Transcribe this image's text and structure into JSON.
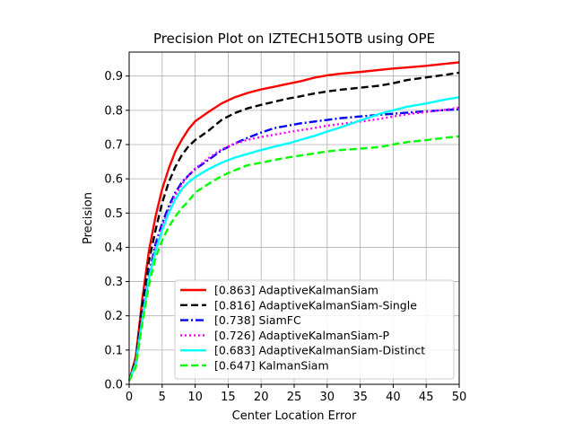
{
  "chart_data": {
    "type": "line",
    "title": "Precision Plot on IZTECH15OTB using OPE",
    "xlabel": "Center Location Error",
    "ylabel": "Precision",
    "xlim": [
      0,
      50
    ],
    "ylim": [
      0,
      0.97
    ],
    "xticks": [
      0,
      5,
      10,
      15,
      20,
      25,
      30,
      35,
      40,
      45,
      50
    ],
    "yticks": [
      0.0,
      0.1,
      0.2,
      0.3,
      0.4,
      0.5,
      0.6,
      0.7,
      0.8,
      0.9
    ],
    "grid": true,
    "legend_position": "lower-right",
    "series": [
      {
        "name": "[0.863] AdaptiveKalmanSiam",
        "color": "#ff0000",
        "dash": "solid",
        "x": [
          0,
          1,
          2,
          3,
          4,
          5,
          6,
          7,
          8,
          9,
          10,
          12,
          14,
          16,
          18,
          20,
          22,
          24,
          26,
          28,
          30,
          32,
          35,
          38,
          40,
          42,
          45,
          48,
          50
        ],
        "y": [
          0.01,
          0.08,
          0.25,
          0.39,
          0.49,
          0.57,
          0.63,
          0.68,
          0.715,
          0.745,
          0.768,
          0.795,
          0.82,
          0.838,
          0.851,
          0.861,
          0.869,
          0.877,
          0.885,
          0.895,
          0.902,
          0.907,
          0.912,
          0.918,
          0.922,
          0.925,
          0.93,
          0.936,
          0.94
        ]
      },
      {
        "name": "[0.816] AdaptiveKalmanSiam-Single",
        "color": "#000000",
        "dash": "dashed",
        "x": [
          0,
          1,
          2,
          3,
          4,
          5,
          6,
          7,
          8,
          9,
          10,
          12,
          14,
          16,
          18,
          20,
          22,
          24,
          26,
          28,
          30,
          32,
          35,
          38,
          40,
          42,
          45,
          48,
          50
        ],
        "y": [
          0.01,
          0.07,
          0.23,
          0.36,
          0.45,
          0.53,
          0.59,
          0.635,
          0.67,
          0.695,
          0.713,
          0.74,
          0.772,
          0.792,
          0.806,
          0.816,
          0.825,
          0.834,
          0.841,
          0.849,
          0.855,
          0.86,
          0.866,
          0.872,
          0.879,
          0.888,
          0.896,
          0.904,
          0.91
        ]
      },
      {
        "name": "[0.738] SiamFC",
        "color": "#0000ff",
        "dash": "dashdot",
        "x": [
          0,
          1,
          2,
          3,
          4,
          5,
          6,
          7,
          8,
          9,
          10,
          12,
          14,
          16,
          18,
          20,
          22,
          24,
          26,
          28,
          30,
          32,
          35,
          38,
          40,
          42,
          45,
          48,
          50
        ],
        "y": [
          0.01,
          0.06,
          0.2,
          0.32,
          0.41,
          0.47,
          0.52,
          0.56,
          0.59,
          0.61,
          0.628,
          0.655,
          0.683,
          0.703,
          0.72,
          0.735,
          0.748,
          0.755,
          0.762,
          0.767,
          0.772,
          0.777,
          0.782,
          0.787,
          0.79,
          0.793,
          0.797,
          0.801,
          0.803
        ]
      },
      {
        "name": "[0.726] AdaptiveKalmanSiam-P",
        "color": "#ff00ff",
        "dash": "dotted",
        "x": [
          0,
          1,
          2,
          3,
          4,
          5,
          6,
          7,
          8,
          9,
          10,
          12,
          14,
          16,
          18,
          20,
          22,
          24,
          26,
          28,
          30,
          32,
          35,
          38,
          40,
          42,
          45,
          48,
          50
        ],
        "y": [
          0.01,
          0.06,
          0.2,
          0.31,
          0.4,
          0.46,
          0.51,
          0.55,
          0.585,
          0.61,
          0.63,
          0.66,
          0.686,
          0.703,
          0.714,
          0.722,
          0.729,
          0.736,
          0.742,
          0.748,
          0.755,
          0.76,
          0.767,
          0.775,
          0.782,
          0.788,
          0.795,
          0.802,
          0.808
        ]
      },
      {
        "name": "[0.683] AdaptiveKalmanSiam-Distinct",
        "color": "#00ffff",
        "dash": "solid",
        "x": [
          0,
          1,
          2,
          3,
          4,
          5,
          6,
          7,
          8,
          9,
          10,
          12,
          14,
          16,
          18,
          20,
          22,
          24,
          26,
          28,
          30,
          32,
          35,
          38,
          40,
          42,
          45,
          48,
          50
        ],
        "y": [
          0.01,
          0.06,
          0.19,
          0.31,
          0.39,
          0.45,
          0.5,
          0.54,
          0.57,
          0.59,
          0.605,
          0.628,
          0.647,
          0.662,
          0.673,
          0.684,
          0.694,
          0.703,
          0.714,
          0.725,
          0.738,
          0.75,
          0.77,
          0.79,
          0.8,
          0.81,
          0.82,
          0.832,
          0.838
        ]
      },
      {
        "name": "[0.647] KalmanSiam",
        "color": "#00ff00",
        "dash": "dashed",
        "x": [
          0,
          1,
          2,
          3,
          4,
          5,
          6,
          7,
          8,
          9,
          10,
          12,
          14,
          16,
          18,
          20,
          22,
          24,
          26,
          28,
          30,
          32,
          35,
          38,
          40,
          42,
          45,
          48,
          50
        ],
        "y": [
          0.01,
          0.05,
          0.18,
          0.29,
          0.37,
          0.42,
          0.46,
          0.49,
          0.515,
          0.535,
          0.56,
          0.585,
          0.608,
          0.625,
          0.64,
          0.647,
          0.655,
          0.662,
          0.668,
          0.674,
          0.68,
          0.684,
          0.688,
          0.693,
          0.7,
          0.707,
          0.713,
          0.72,
          0.724
        ]
      }
    ]
  }
}
